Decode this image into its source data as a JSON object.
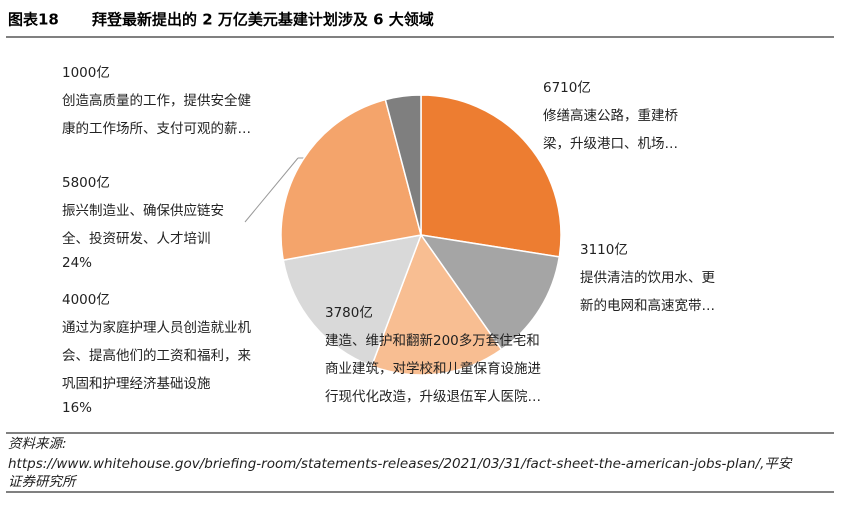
{
  "chart_data": {
    "type": "pie",
    "figure_label": "图表18",
    "title": "拜登最新提出的 2 万亿美元基建计划涉及 6 大领域",
    "categories": [
      null,
      null,
      null,
      null,
      null,
      null
    ],
    "values": [
      6710,
      3110,
      3780,
      4000,
      5800,
      1000
    ],
    "value_labels": [
      "6710亿",
      "3110亿",
      "3780亿",
      "4000亿",
      "5800亿",
      "1000亿"
    ],
    "descriptions": [
      [
        "修缮高速公路，重建桥",
        "梁，升级港口、机场…"
      ],
      [
        "提供清洁的饮用水、更",
        "新的电网和高速宽带…"
      ],
      [
        "建造、维护和翻新200多万套住宅和",
        "商业建筑，对学校和儿童保育设施进",
        "行现代化改造，升级退伍军人医院…"
      ],
      [
        "通过为家庭护理人员创造就业机",
        "会、提高他们的工资和福利，来",
        "巩固和护理经济基础设施"
      ],
      [
        "振兴制造业、确保供应链安",
        "全、投资研发、人才培训"
      ],
      [
        "创造高质量的工作，提供安全健",
        "康的工作场所、支付可观的薪…"
      ]
    ],
    "share_labels": [
      null,
      null,
      null,
      "16%",
      "24%",
      null
    ],
    "colors": [
      "#ED7D31",
      "#A5A5A5",
      "#F8BE92",
      "#D9D9D9",
      "#F4A46B",
      "#7F7F7F"
    ]
  },
  "source": [
    "资料来源:",
    "https://www.whitehouse.gov/briefing-room/statements-releases/2021/03/31/fact-sheet-the-american-jobs-plan/,平安",
    "证券研究所"
  ]
}
